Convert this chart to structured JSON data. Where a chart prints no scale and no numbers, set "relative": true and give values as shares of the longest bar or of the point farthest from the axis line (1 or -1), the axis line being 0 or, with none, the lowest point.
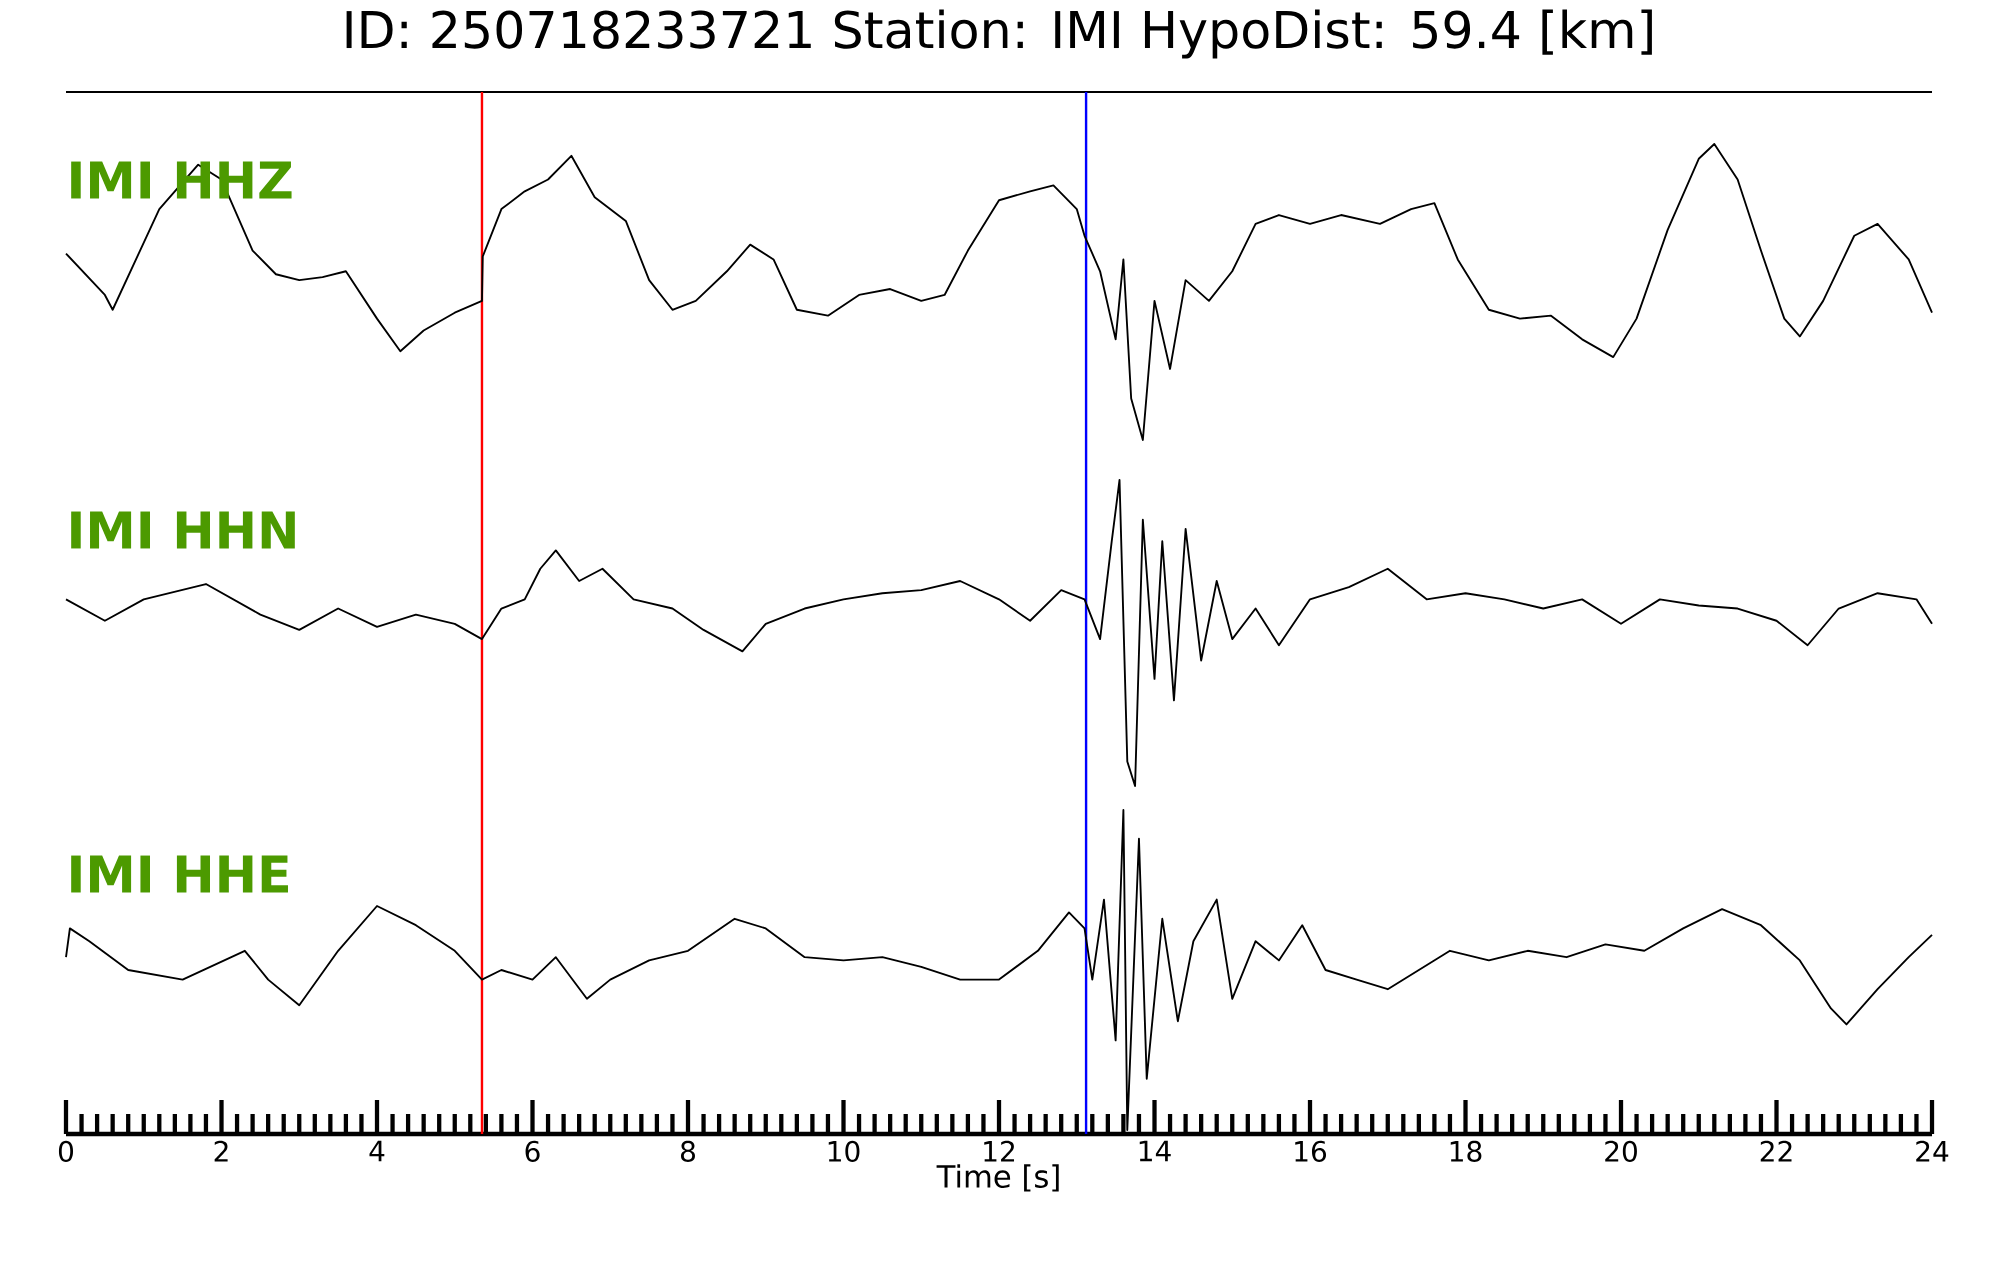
{
  "chart_data": [
    {
      "type": "line",
      "title": "ID: 250718233721   Station: IMI   HypoDist:    59.4 [km]",
      "relative": true,
      "xlim": [
        0,
        24
      ],
      "tick_labels": false,
      "ref_lines": [
        {
          "axis": "x",
          "value": 5.35,
          "color": "#ff0000"
        },
        {
          "axis": "x",
          "value": 13.12,
          "color": "#0000ff"
        }
      ],
      "series": [
        {
          "name": "IMI HHZ",
          "color": "#000000",
          "x": [
            0,
            0.5,
            0.6,
            1.2,
            1.7,
            2.0,
            2.4,
            2.7,
            3.0,
            3.3,
            3.6,
            4.0,
            4.3,
            4.6,
            5.0,
            5.35,
            5.36,
            5.6,
            5.9,
            6.2,
            6.5,
            6.8,
            7.2,
            7.5,
            7.8,
            8.1,
            8.5,
            8.8,
            9.1,
            9.4,
            9.8,
            10.2,
            10.6,
            11.0,
            11.3,
            11.6,
            12.0,
            12.4,
            12.7,
            13.0,
            13.1,
            13.3,
            13.5,
            13.6,
            13.7,
            13.85,
            14.0,
            14.2,
            14.4,
            14.7,
            15.0,
            15.3,
            15.6,
            16.0,
            16.4,
            16.9,
            17.3,
            17.6,
            17.9,
            18.3,
            18.7,
            19.1,
            19.5,
            19.9,
            20.2,
            20.6,
            21.0,
            21.2,
            21.5,
            21.8,
            22.1,
            22.3,
            22.6,
            23.0,
            23.3,
            23.7,
            24.0
          ],
          "values": [
            0.63,
            0.49,
            0.44,
            0.78,
            0.93,
            0.88,
            0.64,
            0.56,
            0.54,
            0.55,
            0.57,
            0.41,
            0.3,
            0.37,
            0.43,
            0.47,
            0.62,
            0.78,
            0.84,
            0.88,
            0.96,
            0.82,
            0.74,
            0.54,
            0.44,
            0.47,
            0.57,
            0.66,
            0.61,
            0.44,
            0.42,
            0.49,
            0.51,
            0.47,
            0.49,
            0.64,
            0.81,
            0.84,
            0.86,
            0.78,
            0.69,
            0.57,
            0.34,
            0.61,
            0.14,
            0.0,
            0.47,
            0.24,
            0.54,
            0.47,
            0.57,
            0.73,
            0.76,
            0.73,
            0.76,
            0.73,
            0.78,
            0.8,
            0.61,
            0.44,
            0.41,
            0.42,
            0.34,
            0.28,
            0.41,
            0.71,
            0.95,
            1.0,
            0.88,
            0.64,
            0.41,
            0.35,
            0.47,
            0.69,
            0.73,
            0.61,
            0.43
          ]
        }
      ]
    },
    {
      "type": "line",
      "relative": true,
      "xlim": [
        0,
        24
      ],
      "tick_labels": false,
      "ref_lines": [
        {
          "axis": "x",
          "value": 5.35,
          "color": "#ff0000"
        },
        {
          "axis": "x",
          "value": 13.12,
          "color": "#0000ff"
        }
      ],
      "series": [
        {
          "name": "IMI HHN",
          "color": "#000000",
          "x": [
            0,
            0.5,
            1.0,
            1.8,
            2.5,
            3.0,
            3.5,
            4.0,
            4.5,
            5.0,
            5.35,
            5.6,
            5.9,
            6.1,
            6.3,
            6.6,
            6.9,
            7.3,
            7.8,
            8.2,
            8.7,
            9.0,
            9.5,
            10.0,
            10.5,
            11.0,
            11.5,
            12.0,
            12.4,
            12.8,
            13.1,
            13.3,
            13.45,
            13.55,
            13.65,
            13.75,
            13.85,
            14.0,
            14.1,
            14.25,
            14.4,
            14.6,
            14.8,
            15.0,
            15.3,
            15.6,
            16.0,
            16.5,
            17.0,
            17.5,
            18.0,
            18.5,
            19.0,
            19.5,
            20.0,
            20.5,
            21.0,
            21.5,
            22.0,
            22.4,
            22.8,
            23.3,
            23.8,
            24.0
          ],
          "values": [
            0.61,
            0.54,
            0.61,
            0.66,
            0.56,
            0.51,
            0.58,
            0.52,
            0.56,
            0.53,
            0.48,
            0.58,
            0.61,
            0.71,
            0.77,
            0.67,
            0.71,
            0.61,
            0.58,
            0.51,
            0.44,
            0.53,
            0.58,
            0.61,
            0.63,
            0.64,
            0.67,
            0.61,
            0.54,
            0.64,
            0.61,
            0.48,
            0.8,
            1.0,
            0.08,
            0.0,
            0.87,
            0.35,
            0.8,
            0.28,
            0.84,
            0.41,
            0.67,
            0.48,
            0.58,
            0.46,
            0.61,
            0.65,
            0.71,
            0.61,
            0.63,
            0.61,
            0.58,
            0.61,
            0.53,
            0.61,
            0.59,
            0.58,
            0.54,
            0.46,
            0.58,
            0.63,
            0.61,
            0.53
          ]
        }
      ]
    },
    {
      "type": "line",
      "relative": true,
      "xlim": [
        0,
        24
      ],
      "xticks": [
        0,
        2,
        4,
        6,
        8,
        10,
        12,
        14,
        16,
        18,
        20,
        22,
        24
      ],
      "xlabel": "Time [s]",
      "tick_labels": "x",
      "ref_lines": [
        {
          "axis": "x",
          "value": 5.35,
          "color": "#ff0000"
        },
        {
          "axis": "x",
          "value": 13.12,
          "color": "#0000ff"
        }
      ],
      "series": [
        {
          "name": "IMI HHE",
          "color": "#000000",
          "x": [
            0,
            0.05,
            0.3,
            0.8,
            1.5,
            2.3,
            2.6,
            3.0,
            3.5,
            4.0,
            4.5,
            5.0,
            5.35,
            5.6,
            6.0,
            6.3,
            6.7,
            7.0,
            7.5,
            8.0,
            8.6,
            9.0,
            9.5,
            10.0,
            10.5,
            11.0,
            11.5,
            12.0,
            12.5,
            12.9,
            13.1,
            13.2,
            13.35,
            13.5,
            13.6,
            13.65,
            13.8,
            13.9,
            14.1,
            14.3,
            14.5,
            14.8,
            15.0,
            15.3,
            15.6,
            15.9,
            16.2,
            16.6,
            17.0,
            17.4,
            17.8,
            18.3,
            18.8,
            19.3,
            19.8,
            20.3,
            20.8,
            21.3,
            21.8,
            22.3,
            22.7,
            22.9,
            23.3,
            23.7,
            24.0
          ],
          "values": [
            0.54,
            0.63,
            0.59,
            0.5,
            0.47,
            0.56,
            0.47,
            0.39,
            0.56,
            0.7,
            0.64,
            0.56,
            0.47,
            0.5,
            0.47,
            0.54,
            0.41,
            0.47,
            0.53,
            0.56,
            0.66,
            0.63,
            0.54,
            0.53,
            0.54,
            0.51,
            0.47,
            0.47,
            0.56,
            0.68,
            0.63,
            0.47,
            0.72,
            0.28,
            1.0,
            0.0,
            0.91,
            0.16,
            0.66,
            0.34,
            0.59,
            0.72,
            0.41,
            0.59,
            0.53,
            0.64,
            0.5,
            0.47,
            0.44,
            0.5,
            0.56,
            0.53,
            0.56,
            0.54,
            0.58,
            0.56,
            0.63,
            0.69,
            0.64,
            0.53,
            0.38,
            0.33,
            0.44,
            0.54,
            0.61
          ]
        }
      ]
    }
  ]
}
